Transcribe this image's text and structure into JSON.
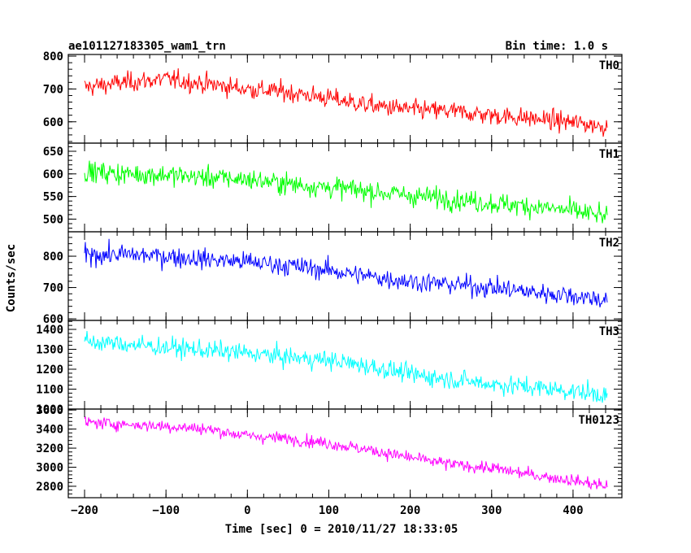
{
  "chart_data": {
    "type": "line",
    "title": "ae101127183305_wam1_trn",
    "subtitle": "Bin time: 1.0 s",
    "xlabel": "Time [sec] 0 = 2010/11/27 18:33:05",
    "ylabel": "Counts/sec",
    "xlim": [
      -220,
      460
    ],
    "x_range": [
      -200,
      442
    ],
    "x_ticks": [
      -200,
      -100,
      0,
      100,
      200,
      300,
      400
    ],
    "grid": false,
    "panels": [
      {
        "name": "TH0",
        "color": "#ff0000",
        "ylim": [
          535,
          805
        ],
        "y_ticks": [
          600,
          700,
          800
        ],
        "trend": [
          [
            -200,
            705
          ],
          [
            -150,
            720
          ],
          [
            -100,
            730
          ],
          [
            -50,
            715
          ],
          [
            0,
            700
          ],
          [
            50,
            690
          ],
          [
            100,
            672
          ],
          [
            150,
            650
          ],
          [
            200,
            637
          ],
          [
            250,
            632
          ],
          [
            300,
            620
          ],
          [
            350,
            610
          ],
          [
            400,
            598
          ],
          [
            442,
            585
          ]
        ],
        "noise": 28
      },
      {
        "name": "TH1",
        "color": "#00ff00",
        "ylim": [
          472,
          668
        ],
        "y_ticks": [
          500,
          550,
          600,
          650
        ],
        "trend": [
          [
            -200,
            605
          ],
          [
            -150,
            600
          ],
          [
            -100,
            598
          ],
          [
            -50,
            592
          ],
          [
            0,
            588
          ],
          [
            50,
            578
          ],
          [
            100,
            570
          ],
          [
            150,
            562
          ],
          [
            200,
            552
          ],
          [
            250,
            545
          ],
          [
            300,
            535
          ],
          [
            350,
            528
          ],
          [
            400,
            518
          ],
          [
            442,
            505
          ]
        ],
        "noise": 22
      },
      {
        "name": "TH2",
        "color": "#0000ff",
        "ylim": [
          595,
          878
        ],
        "y_ticks": [
          600,
          700,
          800
        ],
        "trend": [
          [
            -200,
            805
          ],
          [
            -150,
            805
          ],
          [
            -100,
            800
          ],
          [
            -50,
            790
          ],
          [
            0,
            782
          ],
          [
            50,
            770
          ],
          [
            100,
            755
          ],
          [
            150,
            735
          ],
          [
            200,
            720
          ],
          [
            250,
            710
          ],
          [
            300,
            700
          ],
          [
            350,
            685
          ],
          [
            400,
            675
          ],
          [
            442,
            660
          ]
        ],
        "noise": 30
      },
      {
        "name": "TH3",
        "color": "#00ffff",
        "ylim": [
          1000,
          1445
        ],
        "y_ticks": [
          1000,
          1100,
          1200,
          1300,
          1400
        ],
        "trend": [
          [
            -200,
            1340
          ],
          [
            -150,
            1325
          ],
          [
            -100,
            1310
          ],
          [
            -50,
            1295
          ],
          [
            0,
            1280
          ],
          [
            50,
            1260
          ],
          [
            100,
            1245
          ],
          [
            150,
            1215
          ],
          [
            200,
            1175
          ],
          [
            250,
            1150
          ],
          [
            300,
            1125
          ],
          [
            350,
            1110
          ],
          [
            400,
            1090
          ],
          [
            442,
            1070
          ]
        ],
        "noise": 45
      },
      {
        "name": "TH0123",
        "color": "#ff00ff",
        "ylim": [
          2680,
          3610
        ],
        "y_ticks": [
          2800,
          3000,
          3200,
          3400,
          3600
        ],
        "trend": [
          [
            -200,
            3470
          ],
          [
            -150,
            3450
          ],
          [
            -100,
            3430
          ],
          [
            -50,
            3400
          ],
          [
            0,
            3330
          ],
          [
            50,
            3300
          ],
          [
            100,
            3250
          ],
          [
            150,
            3180
          ],
          [
            200,
            3100
          ],
          [
            250,
            3030
          ],
          [
            300,
            2990
          ],
          [
            350,
            2920
          ],
          [
            400,
            2860
          ],
          [
            442,
            2800
          ]
        ],
        "noise": 60
      }
    ]
  }
}
